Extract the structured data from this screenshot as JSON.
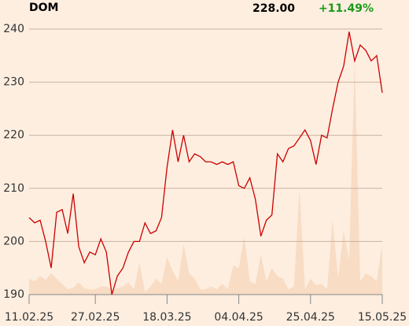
{
  "chart_data": {
    "type": "line",
    "title": "DOM",
    "last": {
      "value": 228,
      "label": "228.00"
    },
    "change": {
      "value": 11.49,
      "label": "+11.49%",
      "color": "#1a9a1a"
    },
    "categories": [
      "11.02.25",
      null,
      null,
      null,
      null,
      null,
      null,
      null,
      null,
      null,
      null,
      null,
      "27.02.25",
      null,
      null,
      null,
      null,
      null,
      null,
      null,
      null,
      null,
      null,
      null,
      null,
      "18.03.25",
      null,
      null,
      null,
      null,
      null,
      null,
      null,
      null,
      null,
      null,
      null,
      null,
      "04.04.25",
      null,
      null,
      null,
      null,
      null,
      null,
      null,
      null,
      null,
      null,
      null,
      null,
      "25.04.25",
      null,
      null,
      null,
      null,
      null,
      null,
      null,
      null,
      null,
      null,
      null,
      null,
      "15.05.25"
    ],
    "series": [
      {
        "color": "#cc0000",
        "values": [
          204.5,
          203.5,
          204,
          200,
          195,
          205.5,
          206,
          201.5,
          209,
          199,
          196,
          198,
          197.5,
          200.5,
          198,
          190,
          193.5,
          195,
          198,
          200,
          200,
          203.5,
          201.5,
          202,
          204.5,
          214,
          221,
          215,
          220,
          215,
          216.5,
          216,
          215,
          215,
          214.5,
          215,
          214.5,
          215,
          210.5,
          210,
          212,
          208,
          201,
          204,
          205,
          216.5,
          215,
          217.5,
          218,
          219.5,
          221,
          219,
          214.5,
          220,
          219.5,
          225,
          230,
          233,
          239.5,
          234,
          237,
          236,
          234,
          235,
          228
        ]
      }
    ],
    "volume": {
      "color": "#f8dcc4",
      "values": [
        193,
        192.5,
        193.5,
        192.8,
        194,
        193,
        192,
        191,
        191.3,
        192.3,
        191.2,
        191,
        191,
        191.5,
        191.5,
        191,
        191.2,
        191.5,
        192.3,
        191,
        196,
        190.5,
        191.5,
        193,
        192,
        197,
        194.5,
        192.5,
        199.5,
        194,
        193,
        191,
        191,
        191.5,
        191,
        192,
        191,
        195.5,
        195,
        201,
        192.5,
        192,
        197.5,
        192.5,
        195,
        193.5,
        193,
        191,
        191.5,
        210,
        191,
        193,
        191.8,
        192,
        191,
        204,
        193,
        202,
        196.5,
        234,
        192.5,
        194,
        193.5,
        192.5,
        199.5
      ]
    },
    "ylim": [
      190,
      240
    ],
    "yticks": [
      190,
      200,
      210,
      220,
      230,
      240
    ],
    "grid": true
  }
}
